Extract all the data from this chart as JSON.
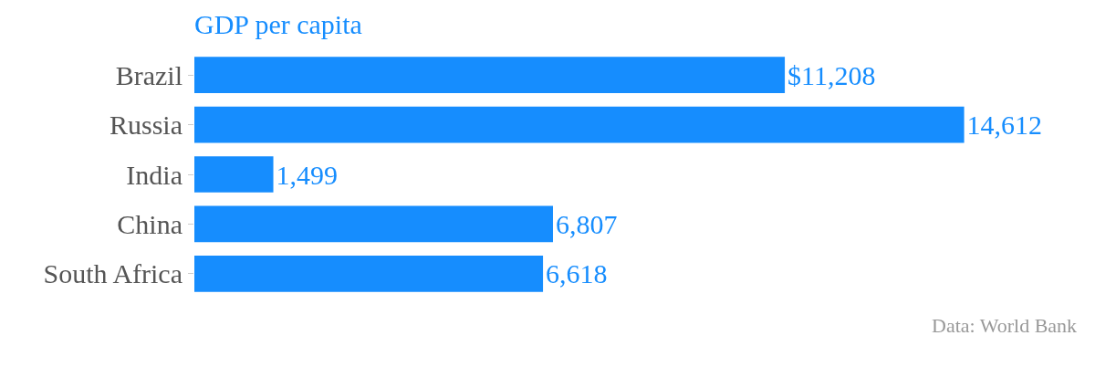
{
  "chart_data": {
    "type": "bar",
    "orientation": "horizontal",
    "title": "GDP per capita",
    "categories": [
      "Brazil",
      "Russia",
      "India",
      "China",
      "South Africa"
    ],
    "values": [
      11208,
      14612,
      1499,
      6807,
      6618
    ],
    "value_labels": [
      "$11,208",
      "14,612",
      "1,499",
      "6,807",
      "6,618"
    ],
    "color": "#168dfe",
    "legend": false,
    "tick_labels": "y",
    "annotations": [
      "Data: World Bank"
    ]
  }
}
